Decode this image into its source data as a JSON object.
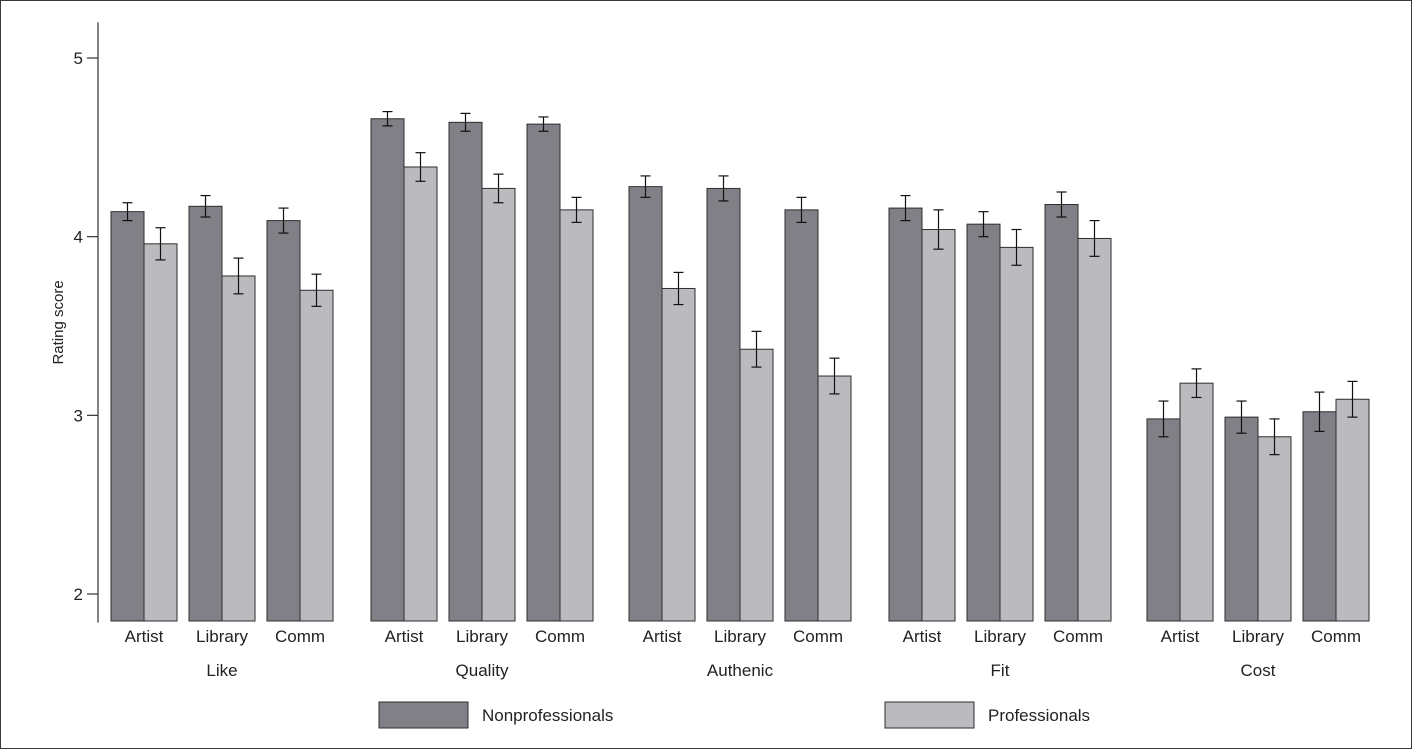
{
  "chart_data": {
    "type": "bar",
    "ylabel": "Rating score",
    "ylim": [
      1.84,
      5.2
    ],
    "yticks": [
      2,
      3,
      4,
      5
    ],
    "colors": {
      "Nonprofessionals": "#808086",
      "Professionals": "#bbbbbf"
    },
    "legend_position": "bottom",
    "groups": [
      {
        "name": "Like",
        "categories": [
          "Artist",
          "Library",
          "Comm"
        ]
      },
      {
        "name": "Quality",
        "categories": [
          "Artist",
          "Library",
          "Comm"
        ]
      },
      {
        "name": "Authenic",
        "categories": [
          "Artist",
          "Library",
          "Comm"
        ]
      },
      {
        "name": "Fit",
        "categories": [
          "Artist",
          "Library",
          "Comm"
        ]
      },
      {
        "name": "Cost",
        "categories": [
          "Artist",
          "Library",
          "Comm"
        ]
      }
    ],
    "series": [
      {
        "name": "Nonprofessionals",
        "values": [
          4.14,
          4.17,
          4.09,
          4.66,
          4.64,
          4.63,
          4.28,
          4.27,
          4.15,
          4.16,
          4.07,
          4.18,
          2.98,
          2.99,
          3.02
        ],
        "errors": [
          0.05,
          0.06,
          0.07,
          0.04,
          0.05,
          0.04,
          0.06,
          0.07,
          0.07,
          0.07,
          0.07,
          0.07,
          0.1,
          0.09,
          0.11
        ]
      },
      {
        "name": "Professionals",
        "values": [
          3.96,
          3.78,
          3.7,
          4.39,
          4.27,
          4.15,
          3.71,
          3.37,
          3.22,
          4.04,
          3.94,
          3.99,
          3.18,
          2.88,
          3.09
        ],
        "errors": [
          0.09,
          0.1,
          0.09,
          0.08,
          0.08,
          0.07,
          0.09,
          0.1,
          0.1,
          0.11,
          0.1,
          0.1,
          0.08,
          0.1,
          0.1
        ]
      }
    ]
  }
}
